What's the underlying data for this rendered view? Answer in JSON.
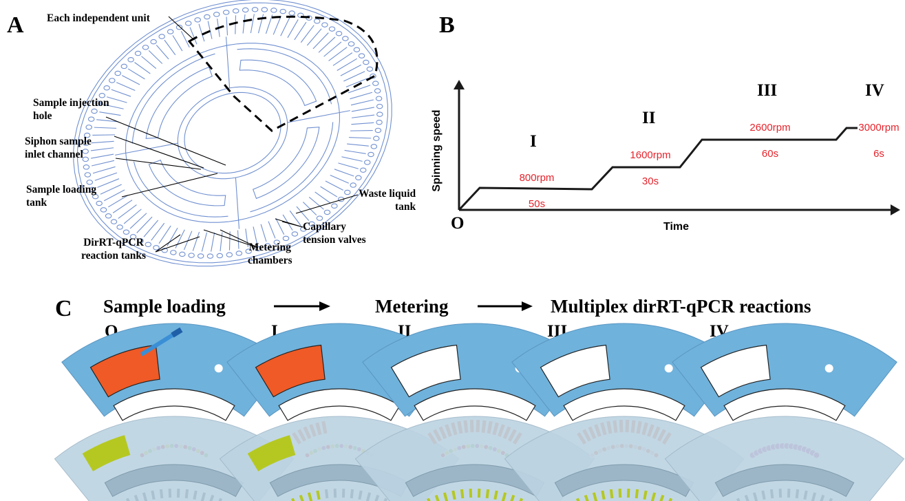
{
  "panels": {
    "a": "A",
    "b": "B",
    "c": "C"
  },
  "panel_a": {
    "callouts": {
      "unit": "Each independent unit",
      "injection": "Sample injection\nhole",
      "siphon": "Siphon sample\ninlet channel",
      "loading": "Sample loading\ntank",
      "waste": "Waste liquid\ntank",
      "capillary": "Capillary\ntension valves",
      "reaction": "DirRT-qPCR\nreaction tanks",
      "metering": "Metering\nchambers"
    },
    "colors": {
      "disc_line": "#6f8fd0"
    }
  },
  "panel_b": {
    "origin": "O",
    "ylabel": "Spinning speed",
    "xlabel": "Time",
    "stages": [
      {
        "roman": "I",
        "speed": "800rpm",
        "time": "50s"
      },
      {
        "roman": "II",
        "speed": "1600rpm",
        "time": "30s"
      },
      {
        "roman": "III",
        "speed": "2600rpm",
        "time": "60s"
      },
      {
        "roman": "IV",
        "speed": "3000rpm",
        "time": "6s"
      }
    ],
    "colors": {
      "label": "#e5232b",
      "line": "#1a1a1a"
    }
  },
  "panel_c": {
    "titles": {
      "loading": "Sample loading",
      "metering": "Metering",
      "reactions": "Multiplex dirRT-qPCR reactions"
    },
    "stages": [
      "O",
      "I",
      "II",
      "III",
      "IV"
    ],
    "colors": {
      "chip": "#6fb2dc",
      "sample": "#ef5a26",
      "reaction": "#c63c9c",
      "photo_chip": "#bcd3e2",
      "photo_fluid": "#b5c821"
    }
  }
}
